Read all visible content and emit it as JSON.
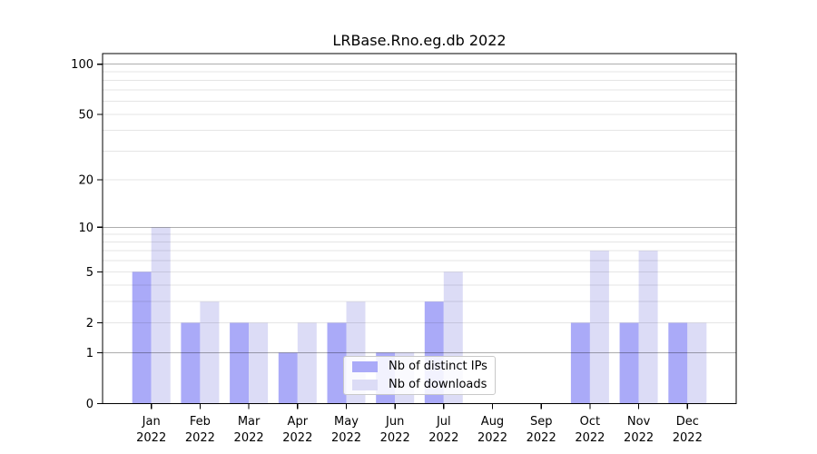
{
  "title": "LRBase.Rno.eg.db 2022",
  "chart_data": {
    "type": "bar",
    "title": "LRBase.Rno.eg.db 2022",
    "categories": [
      "Jan",
      "Feb",
      "Mar",
      "Apr",
      "May",
      "Jun",
      "Jul",
      "Aug",
      "Sep",
      "Oct",
      "Nov",
      "Dec"
    ],
    "year": "2022",
    "series": [
      {
        "name": "Nb of distinct IPs",
        "color": "#aaaaf8",
        "values": [
          5,
          2,
          2,
          1,
          2,
          1,
          3,
          0,
          0,
          2,
          2,
          2
        ]
      },
      {
        "name": "Nb of downloads",
        "color": "#dcdcf6",
        "values": [
          10,
          3,
          2,
          2,
          3,
          1,
          5,
          0,
          0,
          7,
          7,
          2
        ]
      }
    ],
    "xlabel": "",
    "ylabel": "",
    "yscale": "log1p",
    "ylim": [
      0,
      116
    ],
    "yticks": [
      0,
      1,
      2,
      5,
      10,
      20,
      50,
      100
    ],
    "grid": true,
    "gridlines_major": [
      1,
      10,
      100
    ],
    "gridlines_minor": [
      2,
      3,
      4,
      5,
      6,
      7,
      8,
      9,
      20,
      30,
      40,
      50,
      60,
      70,
      80,
      90
    ],
    "grid_major_color": "rgba(0,0,0,0.32)",
    "grid_minor_color": "rgba(0,0,0,0.10)",
    "axis_color": "#000000",
    "legend_position": "bottom-center"
  },
  "legend": {
    "items": [
      {
        "label": "Nb of distinct IPs"
      },
      {
        "label": "Nb of downloads"
      }
    ]
  }
}
